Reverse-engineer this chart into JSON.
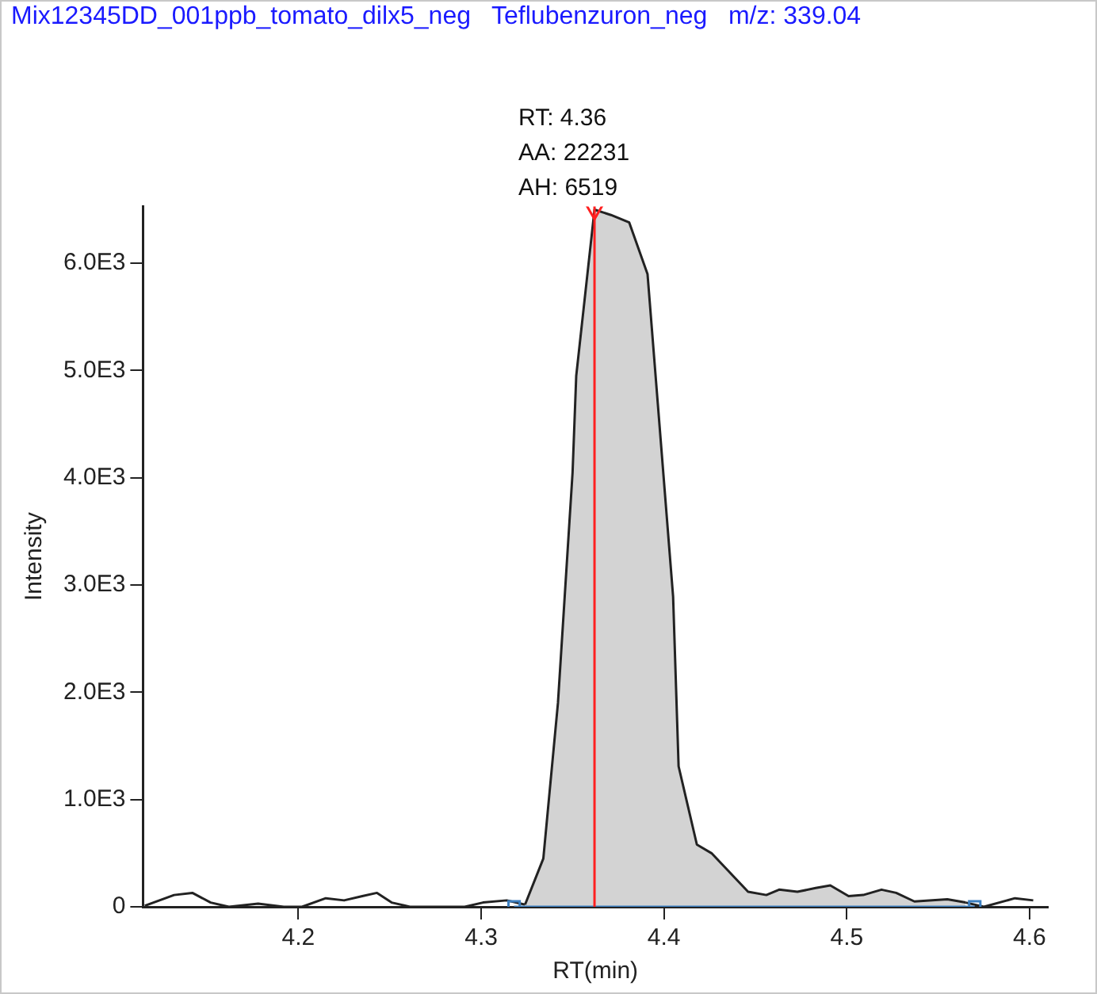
{
  "chart_data": {
    "type": "line",
    "title": "Mix12345DD_001ppb_tomato_dilx5_neg   Teflubenzuron_neg   m/z: 339.04",
    "xlabel": "RT(min)",
    "ylabel": "Intensity",
    "xlim": [
      4.115,
      4.61
    ],
    "xticks": [
      4.2,
      4.3,
      4.4,
      4.5,
      4.6
    ],
    "ylim": [
      0,
      6530
    ],
    "yticks": [
      0,
      {
        "value": 1000,
        "label": "1.0E3"
      },
      {
        "value": 2000,
        "label": "2.0E3"
      },
      {
        "value": 3000,
        "label": "3.0E3"
      },
      {
        "value": 4000,
        "label": "4.0E3"
      },
      {
        "value": 5000,
        "label": "5.0E3"
      },
      {
        "value": 6000,
        "label": "6.0E3"
      }
    ],
    "grid": false,
    "legend": false,
    "series": [
      {
        "type": "line",
        "color": "#222222",
        "marker": "none",
        "x": [
          4.116,
          4.132,
          4.142,
          4.152,
          4.162,
          4.178,
          4.192,
          4.202,
          4.215,
          4.225,
          4.235,
          4.243,
          4.251,
          4.261,
          4.291,
          4.301,
          4.314,
          4.324
        ],
        "values": [
          10,
          110,
          130,
          40,
          0,
          30,
          0,
          0,
          80,
          60,
          100,
          130,
          40,
          0,
          0,
          40,
          60,
          20
        ]
      },
      {
        "type": "area",
        "color": "#d3d3d3",
        "marker": "none",
        "x": [
          4.324,
          4.334,
          4.342,
          4.35,
          4.352,
          4.362,
          4.371,
          4.381,
          4.391,
          4.405,
          4.408,
          4.418,
          4.426,
          4.446,
          4.456,
          4.463,
          4.473,
          4.483,
          4.491,
          4.501,
          4.509,
          4.519,
          4.527,
          4.537,
          4.555,
          4.565
        ],
        "values": [
          20,
          450,
          1900,
          4050,
          4950,
          6500,
          6450,
          6380,
          5900,
          2890,
          1310,
          580,
          500,
          140,
          110,
          160,
          140,
          175,
          200,
          100,
          110,
          160,
          130,
          50,
          70,
          40
        ]
      },
      {
        "type": "line",
        "color": "#222222",
        "marker": "none",
        "x": [
          4.565,
          4.575,
          4.592,
          4.602
        ],
        "values": [
          40,
          0,
          80,
          60
        ]
      },
      {
        "type": "line",
        "color": "#3c7fc0",
        "marker": "square",
        "x": [
          4.318,
          4.57
        ],
        "values": [
          0,
          0
        ]
      },
      {
        "type": "scatter",
        "color": "#ff2020",
        "marker": "triangle",
        "x": [
          4.362
        ],
        "values": [
          6500
        ]
      }
    ],
    "ref_lines": [
      {
        "axis": "x",
        "value": 4.362,
        "color": "#ff2020"
      }
    ],
    "annotations": [
      "RT: 4.36",
      "AA: 22231",
      "AH: 6519"
    ]
  }
}
